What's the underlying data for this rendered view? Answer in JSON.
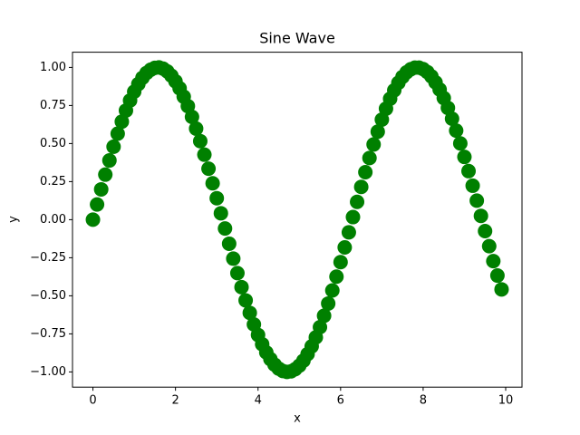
{
  "chart_data": {
    "type": "scatter",
    "title": "Sine Wave",
    "x_label": "x",
    "y_label": "y",
    "series": [
      {
        "color": "#008000",
        "x": [
          0.0,
          0.1,
          0.2,
          0.3,
          0.4,
          0.5,
          0.6,
          0.7,
          0.8,
          0.9,
          1.0,
          1.1,
          1.2,
          1.3,
          1.4,
          1.5,
          1.6,
          1.7,
          1.8,
          1.9,
          2.0,
          2.1,
          2.2,
          2.3,
          2.4,
          2.5,
          2.6,
          2.7,
          2.8,
          2.9,
          3.0,
          3.1,
          3.2,
          3.3,
          3.4,
          3.5,
          3.6,
          3.7,
          3.8,
          3.9,
          4.0,
          4.1,
          4.2,
          4.3,
          4.4,
          4.5,
          4.6,
          4.7,
          4.8,
          4.9,
          5.0,
          5.1,
          5.2,
          5.3,
          5.4,
          5.5,
          5.6,
          5.7,
          5.8,
          5.9,
          6.0,
          6.1,
          6.2,
          6.3,
          6.4,
          6.5,
          6.6,
          6.7,
          6.8,
          6.9,
          7.0,
          7.1,
          7.2,
          7.3,
          7.4,
          7.5,
          7.6,
          7.7,
          7.8,
          7.9,
          8.0,
          8.1,
          8.2,
          8.3,
          8.4,
          8.5,
          8.6,
          8.7,
          8.8,
          8.9,
          9.0,
          9.1,
          9.2,
          9.3,
          9.4,
          9.5,
          9.6,
          9.7,
          9.8,
          9.9
        ],
        "values": [
          0,
          0.1,
          0.199,
          0.296,
          0.389,
          0.479,
          0.565,
          0.644,
          0.717,
          0.783,
          0.841,
          0.891,
          0.932,
          0.964,
          0.985,
          0.997,
          1.0,
          0.992,
          0.974,
          0.946,
          0.909,
          0.863,
          0.808,
          0.746,
          0.675,
          0.598,
          0.516,
          0.427,
          0.335,
          0.239,
          0.141,
          0.042,
          -0.058,
          -0.158,
          -0.256,
          -0.351,
          -0.443,
          -0.53,
          -0.612,
          -0.688,
          -0.757,
          -0.818,
          -0.872,
          -0.916,
          -0.952,
          -0.978,
          -0.994,
          -1.0,
          -0.996,
          -0.982,
          -0.959,
          -0.926,
          -0.883,
          -0.832,
          -0.773,
          -0.706,
          -0.631,
          -0.551,
          -0.465,
          -0.374,
          -0.279,
          -0.182,
          -0.083,
          0.017,
          0.117,
          0.215,
          0.312,
          0.405,
          0.494,
          0.578,
          0.657,
          0.729,
          0.794,
          0.85,
          0.899,
          0.938,
          0.968,
          0.988,
          0.999,
          0.999,
          0.989,
          0.97,
          0.941,
          0.902,
          0.855,
          0.799,
          0.734,
          0.663,
          0.585,
          0.501,
          0.412,
          0.319,
          0.223,
          0.125,
          0.025,
          -0.075,
          -0.174,
          -0.272,
          -0.367,
          -0.458
        ]
      }
    ],
    "xlim": [
      -0.495,
      10.395
    ],
    "ylim": [
      -1.1,
      1.1
    ],
    "xticks": [
      0,
      2,
      4,
      6,
      8,
      10
    ],
    "yticks": [
      {
        "value": -1,
        "label": "−1.00"
      },
      {
        "value": -0.75,
        "label": "−0.75"
      },
      {
        "value": -0.5,
        "label": "−0.50"
      },
      {
        "value": -0.25,
        "label": "−0.25"
      },
      {
        "value": 0,
        "label": "0.00"
      },
      {
        "value": 0.25,
        "label": "0.25"
      },
      {
        "value": 0.5,
        "label": "0.50"
      },
      {
        "value": 0.75,
        "label": "0.75"
      },
      {
        "value": 1,
        "label": "1.00"
      }
    ],
    "grid": false
  }
}
